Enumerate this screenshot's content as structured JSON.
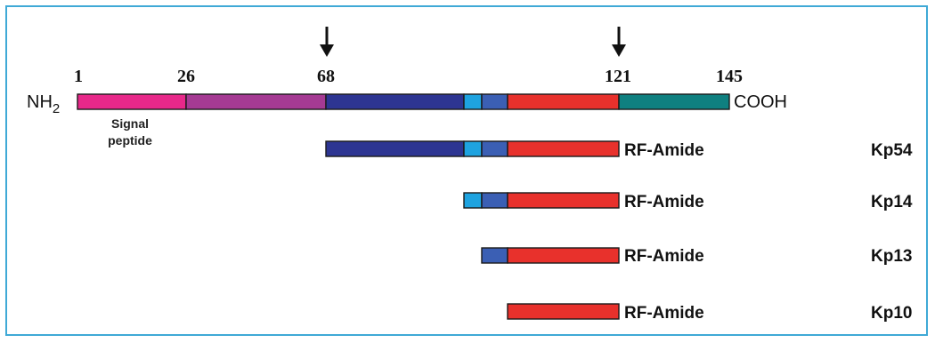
{
  "precursor": {
    "n_term": "NH",
    "n_term_sub": "2",
    "c_term": "COOH",
    "positions": [
      "1",
      "26",
      "68",
      "121",
      "145"
    ],
    "signal_label_line1": "Signal",
    "signal_label_line2": "peptide"
  },
  "colors": {
    "signal": "#e8288a",
    "purple": "#a53a93",
    "navy": "#2d3592",
    "cyan": "#1ea3e0",
    "blue": "#3b5fb4",
    "red": "#e8312c",
    "teal": "#0f8080",
    "frame": "#3fa9d6"
  },
  "peptides": [
    {
      "name": "Kp54",
      "suffix": "RF-Amide"
    },
    {
      "name": "Kp14",
      "suffix": "RF-Amide"
    },
    {
      "name": "Kp13",
      "suffix": "RF-Amide"
    },
    {
      "name": "Kp10",
      "suffix": "RF-Amide"
    }
  ]
}
